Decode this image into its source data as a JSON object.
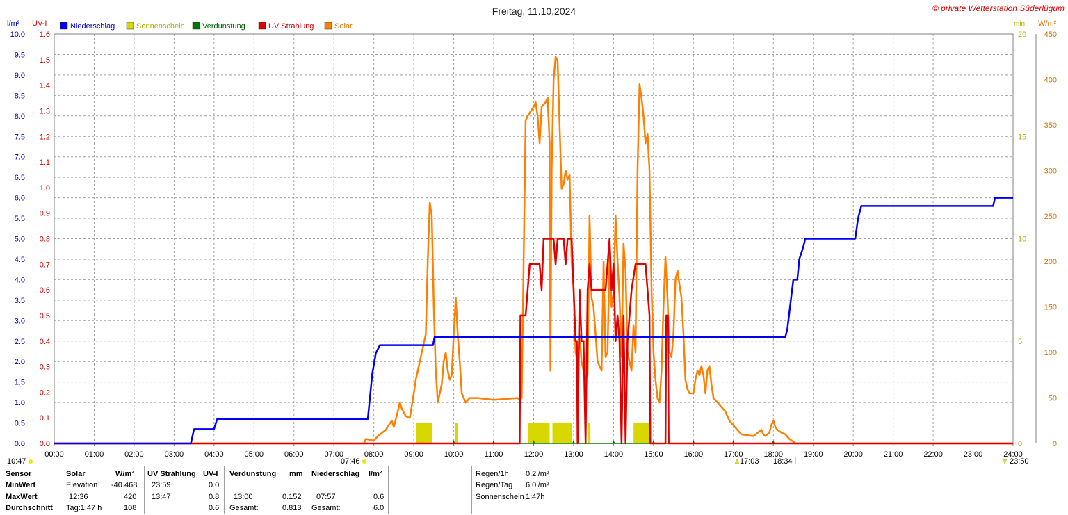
{
  "title": "Freitag, 11.10.2024",
  "copyright": "© private Wetterstation Süderlügum",
  "axes": {
    "left1_unit": "l/m²",
    "left2_unit": "UV-I",
    "right1_unit": "min",
    "right2_unit": "W/m²",
    "rain_ticks": [
      "0.0",
      "0.5",
      "1.0",
      "1.5",
      "2.0",
      "2.5",
      "3.0",
      "3.5",
      "4.0",
      "4.5",
      "5.0",
      "5.5",
      "6.0",
      "6.5",
      "7.0",
      "7.5",
      "8.0",
      "8.5",
      "9.0",
      "9.5",
      "10.0"
    ],
    "uv_ticks": [
      "0.0",
      "0.1",
      "0.2",
      "0.3",
      "0.4",
      "0.5",
      "0.6",
      "0.7",
      "0.8",
      "0.9",
      "1.0",
      "1.1",
      "1.2",
      "1.3",
      "1.4",
      "1.5",
      "1.6"
    ],
    "sun_ticks": [
      "0",
      "5",
      "10",
      "15",
      "20"
    ],
    "solar_ticks": [
      "0",
      "50",
      "100",
      "150",
      "200",
      "250",
      "300",
      "350",
      "400",
      "450"
    ],
    "x_ticks": [
      "00:00",
      "01:00",
      "02:00",
      "03:00",
      "04:00",
      "05:00",
      "06:00",
      "07:00",
      "08:00",
      "09:00",
      "10:00",
      "11:00",
      "12:00",
      "13:00",
      "14:00",
      "15:00",
      "16:00",
      "17:00",
      "18:00",
      "19:00",
      "20:00",
      "21:00",
      "22:00",
      "23:00",
      "24:00"
    ]
  },
  "colors": {
    "niederschlag": "#0000ee",
    "sonnenschein": "#d8d800",
    "verdunstung": "#007800",
    "uv": "#e00000",
    "solar": "#ff8000",
    "grid": "#a0a0a0"
  },
  "legend": [
    {
      "label": "Niederschlag",
      "color": "#0000ee",
      "text_color": "#0000cc"
    },
    {
      "label": "Sonnenschein",
      "color": "#d8d800",
      "text_color": "#b0b000"
    },
    {
      "label": "Verdunstung",
      "color": "#007800",
      "text_color": "#006000"
    },
    {
      "label": "UV Strahlung",
      "color": "#e00000",
      "text_color": "#cc0000"
    },
    {
      "label": "Solar",
      "color": "#ff8000",
      "text_color": "#e07000"
    }
  ],
  "markers": {
    "moonrise": "10:47",
    "sunrise": "07:46",
    "moonset": "17:03",
    "sunset": "18:34",
    "moon2": "23:50"
  },
  "chart_data": {
    "type": "line",
    "title": "Freitag, 11.10.2024",
    "x_unit": "hour",
    "xlim": [
      0,
      24
    ],
    "series": [
      {
        "name": "Niederschlag",
        "unit": "l/m²",
        "ylim": [
          0,
          10
        ],
        "points": [
          [
            0,
            0
          ],
          [
            3.42,
            0
          ],
          [
            3.5,
            0.35
          ],
          [
            4.0,
            0.35
          ],
          [
            4.08,
            0.6
          ],
          [
            7.85,
            0.6
          ],
          [
            7.92,
            1.3
          ],
          [
            7.96,
            1.7
          ],
          [
            8.05,
            2.2
          ],
          [
            8.15,
            2.4
          ],
          [
            9.48,
            2.4
          ],
          [
            9.52,
            2.6
          ],
          [
            18.3,
            2.6
          ],
          [
            18.35,
            2.8
          ],
          [
            18.45,
            3.6
          ],
          [
            18.5,
            4.0
          ],
          [
            18.6,
            4.0
          ],
          [
            18.65,
            4.5
          ],
          [
            18.75,
            4.8
          ],
          [
            18.8,
            5.0
          ],
          [
            20.05,
            5.0
          ],
          [
            20.12,
            5.5
          ],
          [
            20.2,
            5.8
          ],
          [
            23.5,
            5.8
          ],
          [
            23.55,
            6.0
          ],
          [
            24.0,
            6.0
          ]
        ]
      },
      {
        "name": "Sonnenschein",
        "unit": "min",
        "ylim": [
          0,
          20
        ],
        "bars": [
          [
            9.05,
            9.45,
            1.0
          ],
          [
            10.03,
            10.1,
            1.0
          ],
          [
            11.85,
            12.4,
            1.0
          ],
          [
            12.47,
            12.95,
            1.0
          ],
          [
            13.35,
            13.42,
            1.0
          ],
          [
            14.5,
            14.92,
            1.0
          ],
          [
            15.28,
            15.32,
            1.0
          ]
        ]
      },
      {
        "name": "Verdunstung",
        "unit": "l/m²",
        "ylim": [
          0,
          10
        ],
        "points": [
          [
            0,
            0
          ],
          [
            24,
            0
          ]
        ],
        "ticks": [
          10.0,
          11.0,
          12.0,
          13.0,
          14.0,
          15.0,
          16.0,
          17.0,
          18.0
        ]
      },
      {
        "name": "UV Strahlung",
        "unit": "UV-I",
        "ylim": [
          0,
          1.6
        ],
        "points": [
          [
            0,
            0
          ],
          [
            11.65,
            0
          ],
          [
            11.67,
            0.5
          ],
          [
            11.8,
            0.5
          ],
          [
            11.85,
            0.6
          ],
          [
            11.9,
            0.7
          ],
          [
            12.15,
            0.7
          ],
          [
            12.2,
            0.6
          ],
          [
            12.25,
            0.8
          ],
          [
            12.5,
            0.8
          ],
          [
            12.55,
            0.7
          ],
          [
            12.6,
            0.8
          ],
          [
            12.75,
            0.8
          ],
          [
            12.8,
            0.7
          ],
          [
            12.85,
            0.8
          ],
          [
            12.95,
            0.8
          ],
          [
            13.0,
            0.6
          ],
          [
            13.05,
            0.4
          ],
          [
            13.08,
            0.4
          ],
          [
            13.1,
            0
          ],
          [
            13.15,
            0.6
          ],
          [
            13.2,
            0.4
          ],
          [
            13.25,
            0.4
          ],
          [
            13.3,
            0
          ],
          [
            13.35,
            0.6
          ],
          [
            13.4,
            0.7
          ],
          [
            13.45,
            0.6
          ],
          [
            13.8,
            0.6
          ],
          [
            13.85,
            0.7
          ],
          [
            13.9,
            0.8
          ],
          [
            13.95,
            0.6
          ],
          [
            14.0,
            0.7
          ],
          [
            14.05,
            0.4
          ],
          [
            14.1,
            0.5
          ],
          [
            14.15,
            0.4
          ],
          [
            14.2,
            0
          ],
          [
            14.25,
            0.5
          ],
          [
            14.3,
            0
          ],
          [
            14.35,
            0.4
          ],
          [
            14.4,
            0.5
          ],
          [
            14.45,
            0.6
          ],
          [
            14.55,
            0.7
          ],
          [
            14.8,
            0.7
          ],
          [
            14.85,
            0.6
          ],
          [
            14.9,
            0.5
          ],
          [
            14.92,
            0
          ],
          [
            15.3,
            0
          ],
          [
            15.32,
            0.5
          ],
          [
            15.36,
            0.5
          ],
          [
            15.38,
            0
          ],
          [
            24.0,
            0
          ]
        ]
      },
      {
        "name": "Solar",
        "unit": "W/m²",
        "ylim": [
          0,
          450
        ],
        "points": [
          [
            0,
            0
          ],
          [
            7.75,
            0
          ],
          [
            7.8,
            5
          ],
          [
            8.0,
            3
          ],
          [
            8.1,
            8
          ],
          [
            8.3,
            15
          ],
          [
            8.4,
            22
          ],
          [
            8.45,
            25
          ],
          [
            8.5,
            18
          ],
          [
            8.6,
            35
          ],
          [
            8.65,
            45
          ],
          [
            8.7,
            38
          ],
          [
            8.8,
            30
          ],
          [
            8.9,
            28
          ],
          [
            9.0,
            55
          ],
          [
            9.05,
            70
          ],
          [
            9.1,
            80
          ],
          [
            9.2,
            100
          ],
          [
            9.3,
            120
          ],
          [
            9.35,
            200
          ],
          [
            9.4,
            265
          ],
          [
            9.45,
            250
          ],
          [
            9.5,
            150
          ],
          [
            9.55,
            80
          ],
          [
            9.6,
            45
          ],
          [
            9.7,
            65
          ],
          [
            9.75,
            90
          ],
          [
            9.8,
            100
          ],
          [
            9.85,
            80
          ],
          [
            9.9,
            70
          ],
          [
            9.95,
            75
          ],
          [
            10.0,
            120
          ],
          [
            10.05,
            160
          ],
          [
            10.1,
            120
          ],
          [
            10.15,
            90
          ],
          [
            10.2,
            55
          ],
          [
            10.3,
            45
          ],
          [
            10.4,
            50
          ],
          [
            10.6,
            50
          ],
          [
            11.0,
            48
          ],
          [
            11.6,
            50
          ],
          [
            11.65,
            48
          ],
          [
            11.7,
            50
          ],
          [
            11.75,
            200
          ],
          [
            11.8,
            355
          ],
          [
            11.85,
            360
          ],
          [
            12.0,
            370
          ],
          [
            12.05,
            375
          ],
          [
            12.1,
            360
          ],
          [
            12.15,
            330
          ],
          [
            12.2,
            370
          ],
          [
            12.3,
            375
          ],
          [
            12.35,
            380
          ],
          [
            12.4,
            330
          ],
          [
            12.42,
            80
          ],
          [
            12.45,
            300
          ],
          [
            12.5,
            400
          ],
          [
            12.55,
            425
          ],
          [
            12.6,
            420
          ],
          [
            12.65,
            350
          ],
          [
            12.7,
            280
          ],
          [
            12.75,
            285
          ],
          [
            12.8,
            300
          ],
          [
            12.85,
            290
          ],
          [
            12.9,
            295
          ],
          [
            12.95,
            200
          ],
          [
            13.0,
            170
          ],
          [
            13.05,
            100
          ],
          [
            13.1,
            90
          ],
          [
            13.15,
            120
          ],
          [
            13.2,
            90
          ],
          [
            13.25,
            80
          ],
          [
            13.3,
            70
          ],
          [
            13.35,
            75
          ],
          [
            13.4,
            250
          ],
          [
            13.45,
            160
          ],
          [
            13.5,
            150
          ],
          [
            13.6,
            90
          ],
          [
            13.7,
            80
          ],
          [
            13.75,
            200
          ],
          [
            13.8,
            95
          ],
          [
            13.85,
            100
          ],
          [
            13.9,
            210
          ],
          [
            13.95,
            150
          ],
          [
            14.0,
            165
          ],
          [
            14.05,
            250
          ],
          [
            14.1,
            200
          ],
          [
            14.15,
            160
          ],
          [
            14.2,
            95
          ],
          [
            14.25,
            220
          ],
          [
            14.3,
            190
          ],
          [
            14.35,
            100
          ],
          [
            14.4,
            90
          ],
          [
            14.45,
            80
          ],
          [
            14.5,
            130
          ],
          [
            14.55,
            100
          ],
          [
            14.6,
            300
          ],
          [
            14.65,
            395
          ],
          [
            14.7,
            380
          ],
          [
            14.75,
            360
          ],
          [
            14.8,
            330
          ],
          [
            14.85,
            340
          ],
          [
            14.9,
            300
          ],
          [
            14.95,
            170
          ],
          [
            15.0,
            100
          ],
          [
            15.05,
            70
          ],
          [
            15.1,
            50
          ],
          [
            15.15,
            45
          ],
          [
            15.2,
            80
          ],
          [
            15.25,
            150
          ],
          [
            15.3,
            205
          ],
          [
            15.35,
            160
          ],
          [
            15.4,
            100
          ],
          [
            15.45,
            95
          ],
          [
            15.5,
            120
          ],
          [
            15.55,
            180
          ],
          [
            15.6,
            190
          ],
          [
            15.65,
            175
          ],
          [
            15.7,
            160
          ],
          [
            15.75,
            120
          ],
          [
            15.8,
            70
          ],
          [
            15.85,
            60
          ],
          [
            15.9,
            55
          ],
          [
            16.0,
            55
          ],
          [
            16.05,
            70
          ],
          [
            16.1,
            80
          ],
          [
            16.15,
            75
          ],
          [
            16.2,
            85
          ],
          [
            16.25,
            75
          ],
          [
            16.3,
            55
          ],
          [
            16.35,
            80
          ],
          [
            16.4,
            85
          ],
          [
            16.45,
            65
          ],
          [
            16.5,
            50
          ],
          [
            16.6,
            45
          ],
          [
            16.7,
            40
          ],
          [
            16.8,
            35
          ],
          [
            16.9,
            25
          ],
          [
            17.0,
            20
          ],
          [
            17.1,
            15
          ],
          [
            17.2,
            10
          ],
          [
            17.5,
            8
          ],
          [
            17.7,
            15
          ],
          [
            17.75,
            10
          ],
          [
            17.8,
            8
          ],
          [
            17.9,
            12
          ],
          [
            17.95,
            20
          ],
          [
            18.0,
            25
          ],
          [
            18.05,
            18
          ],
          [
            18.1,
            15
          ],
          [
            18.2,
            12
          ],
          [
            18.3,
            10
          ],
          [
            18.4,
            5
          ],
          [
            18.5,
            2
          ],
          [
            18.55,
            0
          ],
          [
            24,
            0
          ]
        ]
      }
    ]
  },
  "stats": {
    "sensor_header": "Sensor",
    "min_label": "MinWert",
    "max_label": "MaxWert",
    "avg_label": "Durchschnitt",
    "solar": {
      "header": "Solar",
      "unit": "W/m²",
      "min_time": "Elevation",
      "min_val": "-40.468",
      "max_time": "12:36",
      "max_val": "420",
      "avg_time": "Tag:1:47 h",
      "avg_val": "108"
    },
    "uv": {
      "header": "UV Strahlung",
      "unit": "UV-I",
      "min_time": "23:59",
      "min_val": "0.0",
      "max_time": "13:47",
      "max_val": "0.8",
      "avg_val": "0.6"
    },
    "verdunstung": {
      "header": "Verdunstung",
      "unit": "mm",
      "max_time": "13:00",
      "max_val": "0.152",
      "avg_time": "Gesamt:",
      "avg_val": "0.813"
    },
    "niederschlag": {
      "header": "Niederschlag",
      "unit": "l/m²",
      "max_time": "07:57",
      "max_val": "0.6",
      "avg_time": "Gesamt:",
      "avg_val": "6.0"
    },
    "summary": [
      {
        "label": "Regen/1h",
        "value": "0.2l/m²"
      },
      {
        "label": "Regen/Tag",
        "value": "6.0l/m²"
      },
      {
        "label": "Sonnenschein",
        "value": "1:47h"
      }
    ]
  }
}
